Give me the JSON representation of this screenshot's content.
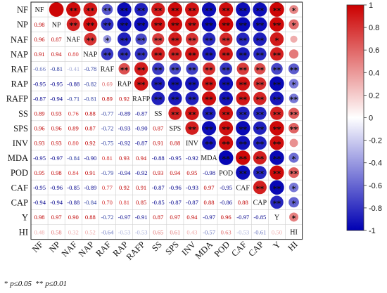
{
  "chart_data": {
    "type": "heatmap",
    "subtype": "correlation-matrix",
    "variables": [
      "NF",
      "NP",
      "NAF",
      "NAP",
      "RAF",
      "RAP",
      "RAFP",
      "SS",
      "SPS",
      "INV",
      "MDA",
      "POD",
      "CAF",
      "CAP",
      "Y",
      "HI"
    ],
    "lower_triangle": [
      [],
      [
        0.98
      ],
      [
        0.96,
        0.87
      ],
      [
        0.91,
        0.94,
        0.8
      ],
      [
        -0.66,
        -0.81,
        -0.41,
        -0.78
      ],
      [
        -0.95,
        -0.95,
        -0.88,
        -0.82,
        0.69
      ],
      [
        -0.87,
        -0.94,
        -0.71,
        -0.81,
        0.89,
        0.92
      ],
      [
        0.89,
        0.93,
        0.76,
        0.88,
        -0.77,
        -0.89,
        -0.87
      ],
      [
        0.96,
        0.96,
        0.89,
        0.87,
        -0.72,
        -0.93,
        -0.9,
        0.87
      ],
      [
        0.93,
        0.93,
        0.8,
        0.92,
        -0.75,
        -0.92,
        -0.87,
        0.91,
        0.88
      ],
      [
        -0.95,
        -0.97,
        -0.84,
        -0.9,
        0.81,
        0.93,
        0.94,
        -0.88,
        -0.95,
        -0.92
      ],
      [
        0.95,
        0.98,
        0.84,
        0.91,
        -0.79,
        -0.94,
        -0.92,
        0.93,
        0.94,
        0.95,
        -0.98
      ],
      [
        -0.95,
        -0.96,
        -0.85,
        -0.89,
        0.77,
        0.92,
        0.91,
        -0.87,
        -0.96,
        -0.93,
        0.97,
        -0.95
      ],
      [
        -0.94,
        -0.94,
        -0.88,
        -0.84,
        0.7,
        0.81,
        0.85,
        -0.85,
        -0.87,
        -0.87,
        0.88,
        -0.86,
        0.88
      ],
      [
        0.98,
        0.97,
        0.9,
        0.88,
        -0.72,
        -0.97,
        -0.91,
        0.87,
        0.97,
        0.94,
        -0.97,
        0.96,
        -0.97,
        -0.85
      ],
      [
        0.48,
        0.58,
        0.32,
        0.52,
        -0.64,
        -0.53,
        -0.53,
        0.65,
        0.61,
        0.43,
        -0.57,
        0.63,
        -0.53,
        -0.61,
        0.5
      ]
    ],
    "significance": {
      "1": "*",
      "2": "**"
    },
    "upper_sig_rows": [
      [
        0,
        2,
        2,
        2,
        2,
        2,
        2,
        2,
        2,
        2,
        2,
        2,
        2,
        2,
        1
      ],
      [
        2,
        2,
        2,
        2,
        2,
        2,
        2,
        2,
        2,
        2,
        2,
        2,
        2,
        1
      ],
      [
        2,
        1,
        2,
        2,
        2,
        2,
        2,
        2,
        2,
        2,
        2,
        1
      ],
      [
        2,
        2,
        2,
        2,
        2,
        2,
        2,
        2,
        2,
        2,
        2,
        0
      ],
      [
        2,
        2,
        2,
        2,
        2,
        2,
        2,
        2,
        2,
        2,
        2
      ],
      [
        2,
        2,
        2,
        2,
        2,
        2,
        2,
        2,
        2,
        1
      ],
      [
        2,
        2,
        2,
        2,
        2,
        2,
        2,
        2,
        2
      ],
      [
        2,
        2,
        2,
        2,
        2,
        2,
        2,
        2
      ],
      [
        2,
        2,
        2,
        2,
        2,
        2,
        2
      ],
      [
        2,
        2,
        2,
        2,
        2,
        0
      ],
      [
        2,
        2,
        2,
        2,
        1
      ],
      [
        2,
        2,
        2,
        2
      ],
      [
        2,
        2,
        1
      ],
      [
        2,
        1
      ],
      [
        1
      ],
      []
    ],
    "colorbar": {
      "min": -1,
      "max": 1,
      "ticks": [
        "1",
        "0.8",
        "0.6",
        "0.4",
        "0.2",
        "0",
        "-0.2",
        "-0.4",
        "-0.6",
        "-0.8",
        "-1"
      ],
      "colors": [
        "#0000b3",
        "#ffffff",
        "#cc0000"
      ]
    },
    "grid": true,
    "legend": "right"
  },
  "footnote": {
    "single_marker": "*",
    "single_text": "p≤0.05",
    "double_marker": "**",
    "double_text": "p≤0.01"
  }
}
